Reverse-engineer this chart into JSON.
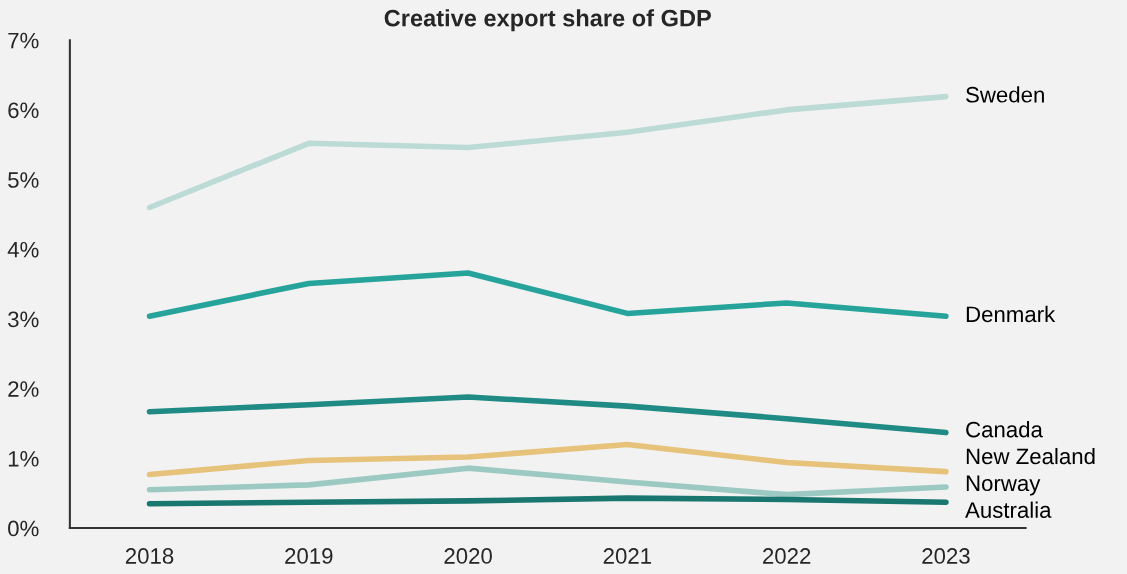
{
  "chart_data": {
    "type": "line",
    "title": "Creative export share of GDP",
    "categories": [
      "2018",
      "2019",
      "2020",
      "2021",
      "2022",
      "2023"
    ],
    "series": [
      {
        "name": "Sweden",
        "color": "#bddbd6",
        "values": [
          4.6,
          5.52,
          5.46,
          5.68,
          6.0,
          6.19
        ]
      },
      {
        "name": "Denmark",
        "color": "#26a39a",
        "values": [
          3.04,
          3.51,
          3.66,
          3.08,
          3.23,
          3.04
        ]
      },
      {
        "name": "Canada",
        "color": "#1f8b84",
        "values": [
          1.67,
          1.77,
          1.88,
          1.75,
          1.57,
          1.37
        ]
      },
      {
        "name": "New Zealand",
        "color": "#e6c27a",
        "values": [
          0.77,
          0.97,
          1.02,
          1.2,
          0.94,
          0.81
        ]
      },
      {
        "name": "Norway",
        "color": "#9cc9c2",
        "values": [
          0.55,
          0.62,
          0.86,
          0.66,
          0.48,
          0.59
        ]
      },
      {
        "name": "Australia",
        "color": "#19776f",
        "values": [
          0.35,
          0.37,
          0.39,
          0.43,
          0.41,
          0.37
        ]
      }
    ],
    "ylim": [
      0,
      7
    ],
    "yticks": [
      {
        "value": 0,
        "label": "0%"
      },
      {
        "value": 1,
        "label": "1%"
      },
      {
        "value": 2,
        "label": "2%"
      },
      {
        "value": 3,
        "label": "3%"
      },
      {
        "value": 4,
        "label": "4%"
      },
      {
        "value": 5,
        "label": "5%"
      },
      {
        "value": 6,
        "label": "6%"
      },
      {
        "value": 7,
        "label": "7%"
      }
    ],
    "grid": false,
    "legend": false,
    "marker": "none",
    "line_style": "solid"
  }
}
